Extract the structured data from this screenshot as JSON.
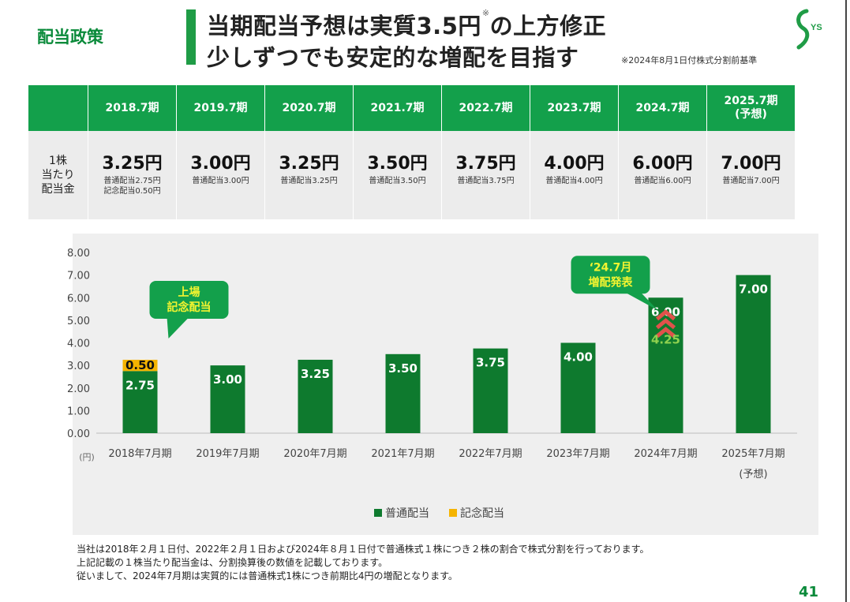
{
  "header": {
    "section_label": "配当政策",
    "title_line1_pre": "当期配当予想は実質3.5円",
    "title_mark": "※",
    "title_line1_post": "の上方修正",
    "title_line2": "少しずつでも安定的な増配を目指す",
    "note": "※2024年8月1日付株式分割前基準"
  },
  "logo": {
    "text": "YS",
    "color": "#1f9c46"
  },
  "table": {
    "row_label_lines": [
      "1株",
      "当たり",
      "配当金"
    ],
    "columns": [
      {
        "period_lines": [
          "2018.7期"
        ],
        "amount": "3.25円",
        "breakdown_lines": [
          "普通配当2.75円",
          "記念配当0.50円"
        ]
      },
      {
        "period_lines": [
          "2019.7期"
        ],
        "amount": "3.00円",
        "breakdown_lines": [
          "普通配当3.00円"
        ]
      },
      {
        "period_lines": [
          "2020.7期"
        ],
        "amount": "3.25円",
        "breakdown_lines": [
          "普通配当3.25円"
        ]
      },
      {
        "period_lines": [
          "2021.7期"
        ],
        "amount": "3.50円",
        "breakdown_lines": [
          "普通配当3.50円"
        ]
      },
      {
        "period_lines": [
          "2022.7期"
        ],
        "amount": "3.75円",
        "breakdown_lines": [
          "普通配当3.75円"
        ]
      },
      {
        "period_lines": [
          "2023.7期"
        ],
        "amount": "4.00円",
        "breakdown_lines": [
          "普通配当4.00円"
        ]
      },
      {
        "period_lines": [
          "2024.7期"
        ],
        "amount": "6.00円",
        "breakdown_lines": [
          "普通配当6.00円"
        ]
      },
      {
        "period_lines": [
          "2025.7期",
          "(予想)"
        ],
        "amount": "7.00円",
        "breakdown_lines": [
          "普通配当7.00円"
        ]
      }
    ]
  },
  "chart_data": {
    "type": "bar",
    "stacked": true,
    "categories": [
      "2018年7月期",
      "2019年7月期",
      "2020年7月期",
      "2021年7月期",
      "2022年7月期",
      "2023年7月期",
      "2024年7月期",
      "2025年7月期"
    ],
    "category_sublabels": [
      "",
      "",
      "",
      "",
      "",
      "",
      "",
      "(予想)"
    ],
    "series": [
      {
        "name": "普通配当",
        "color": "#0e7a2e",
        "values": [
          2.75,
          3.0,
          3.25,
          3.5,
          3.75,
          4.0,
          6.0,
          7.0
        ],
        "labels": [
          "2.75",
          "3.00",
          "3.25",
          "3.50",
          "3.75",
          "4.00",
          "6.00",
          "7.00"
        ]
      },
      {
        "name": "記念配当",
        "color": "#f5b400",
        "values": [
          0.5,
          0,
          0,
          0,
          0,
          0,
          0,
          0
        ],
        "labels": [
          "0.50",
          "",
          "",
          "",
          "",
          "",
          "",
          ""
        ]
      }
    ],
    "ylim": [
      0,
      8
    ],
    "yticks": [
      "0.00",
      "1.00",
      "2.00",
      "3.00",
      "4.00",
      "5.00",
      "6.00",
      "7.00",
      "8.00"
    ],
    "yunit": "(円)",
    "legend_position": "bottom-center",
    "annotations": [
      {
        "category_index": 0,
        "value": 3.25,
        "lines": [
          "上場",
          "記念配当"
        ]
      },
      {
        "category_index": 6,
        "value": 6.0,
        "lines": [
          "‘24.7月",
          "増配発表"
        ]
      }
    ],
    "inner_annotation": {
      "category_index": 6,
      "value": 4.25,
      "text": "4.25",
      "color": "#8fd14f",
      "arrow_color": "#e0524b"
    }
  },
  "footnotes": [
    "当社は2018年２月１日付、2022年２月１日および2024年８月１日付で普通株式１株につき２株の割合で株式分割を行っております。",
    "上記記載の１株当たり配当金は、分割換算後の数値を記載しております。",
    "従いまして、2024年7月期は実質的には普通株式1株につき前期比4円の増配となります。"
  ],
  "page_number": "41"
}
